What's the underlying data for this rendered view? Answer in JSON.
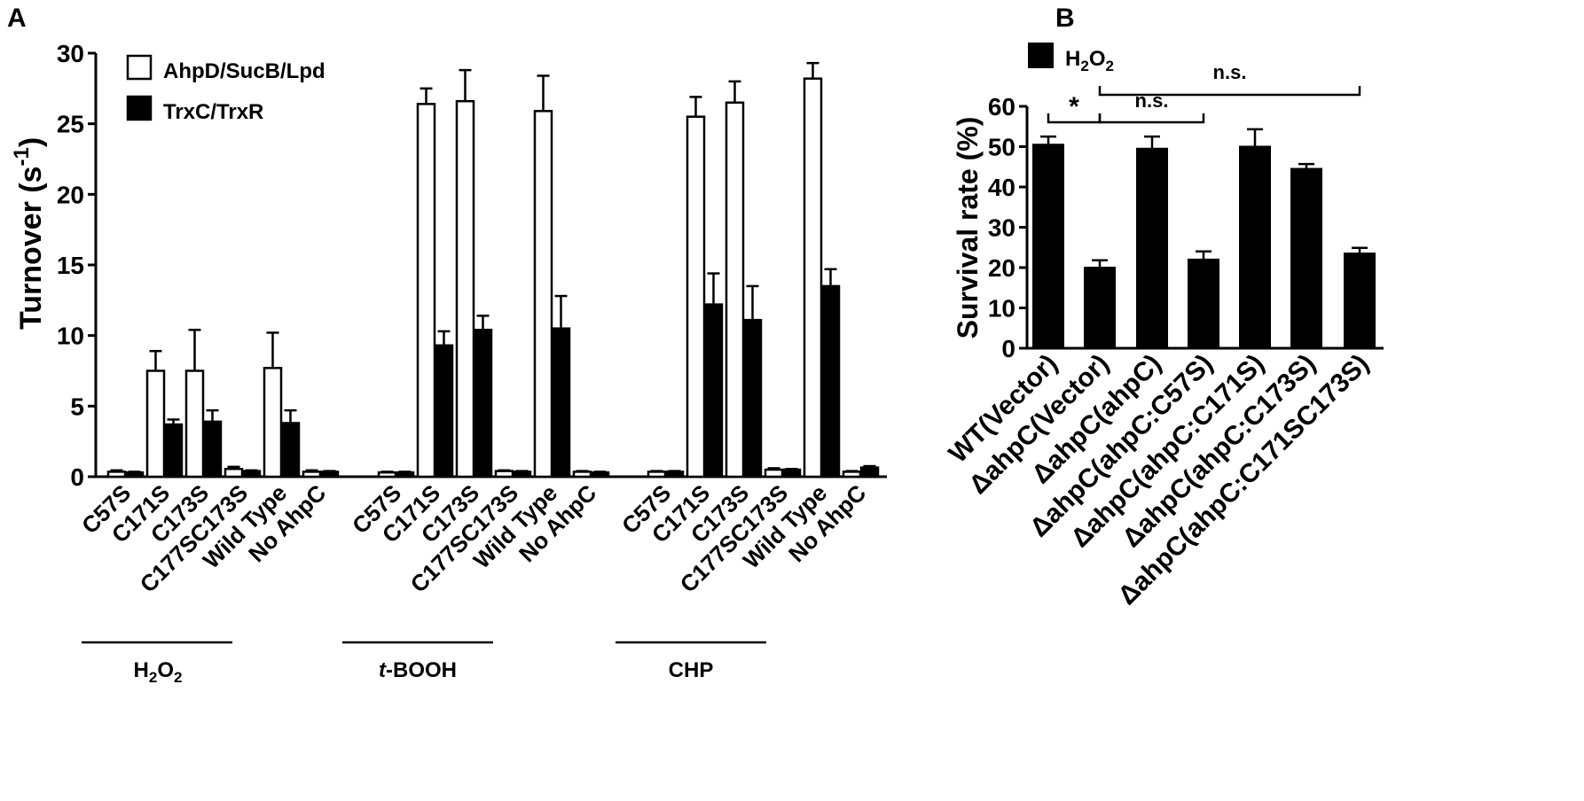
{
  "figure": {
    "panel_a_letter": "A",
    "panel_b_letter": "B"
  },
  "chart_data": [
    {
      "panel": "A",
      "type": "bar",
      "ylabel": "Turnover (s",
      "ylabel_sup": "-1",
      "ylabel_close": ")",
      "ylim": [
        0,
        30
      ],
      "yticks": [
        "0",
        "5",
        "10",
        "15",
        "20",
        "25",
        "30"
      ],
      "legend_placement": "top-left",
      "groups": [
        {
          "label": "H2O2",
          "label_main": "H",
          "label_sub1": "2",
          "label_mid": "O",
          "label_sub2": "2"
        },
        {
          "label": "t-BOOH",
          "label_italic": "t",
          "label_rest": "-BOOH"
        },
        {
          "label": "CHP"
        }
      ],
      "categories": [
        "C57S",
        "C171S",
        "C173S",
        "C177SC173S",
        "Wild Type",
        "No AhpC"
      ],
      "series": [
        {
          "name": "AhpD/SucB/Lpd",
          "color": "#ffffff",
          "values": [
            [
              0.35,
              7.5,
              7.5,
              0.55,
              7.7,
              0.35
            ],
            [
              0.3,
              26.4,
              26.6,
              0.4,
              25.9,
              0.35
            ],
            [
              0.35,
              25.5,
              26.5,
              0.5,
              28.2,
              0.35
            ]
          ],
          "errors": [
            [
              0.1,
              1.4,
              2.9,
              0.15,
              2.5,
              0.1
            ],
            [
              0.05,
              1.1,
              2.2,
              0.05,
              2.5,
              0.05
            ],
            [
              0.05,
              1.4,
              1.5,
              0.1,
              1.1,
              0.05
            ]
          ]
        },
        {
          "name": "TrxC/TrxR",
          "color": "#000000",
          "values": [
            [
              0.3,
              3.7,
              3.9,
              0.4,
              3.8,
              0.35
            ],
            [
              0.3,
              9.3,
              10.4,
              0.35,
              10.5,
              0.3
            ],
            [
              0.35,
              12.2,
              11.1,
              0.5,
              13.5,
              0.65
            ]
          ],
          "errors": [
            [
              0.05,
              0.35,
              0.8,
              0.05,
              0.9,
              0.05
            ],
            [
              0.05,
              1.0,
              1.0,
              0.05,
              2.3,
              0.05
            ],
            [
              0.05,
              2.2,
              2.4,
              0.05,
              1.2,
              0.1
            ]
          ]
        }
      ]
    },
    {
      "panel": "B",
      "type": "bar",
      "ylabel": "Survival rate (%)",
      "ylim": [
        0,
        60
      ],
      "yticks": [
        "0",
        "10",
        "20",
        "30",
        "40",
        "50",
        "60"
      ],
      "legend_placement": "top-left",
      "categories": [
        "WT(Vector)",
        "ΔahpC(Vector)",
        "ΔahpC(ahpC)",
        "ΔahpC(ahpC:C57S)",
        "ΔahpC(ahpC:C171S)",
        "ΔahpC(ahpC:C173S)",
        "ΔahpC(ahpC:C171SC173S)"
      ],
      "series": [
        {
          "name": "H2O2",
          "name_main": "H",
          "name_sub1": "2",
          "name_mid": "O",
          "name_sub2": "2",
          "color": "#000000",
          "values": [
            50.5,
            20.0,
            49.5,
            22.0,
            50.0,
            44.5,
            23.5
          ],
          "errors": [
            2.0,
            1.8,
            3.0,
            2.0,
            4.3,
            1.2,
            1.4
          ]
        }
      ],
      "annotations": [
        {
          "text": "*",
          "from": 0,
          "to": 1
        },
        {
          "text": "n.s.",
          "from": 1,
          "to": 3
        },
        {
          "text": "n.s.",
          "from": 1,
          "to": 6
        }
      ]
    }
  ]
}
